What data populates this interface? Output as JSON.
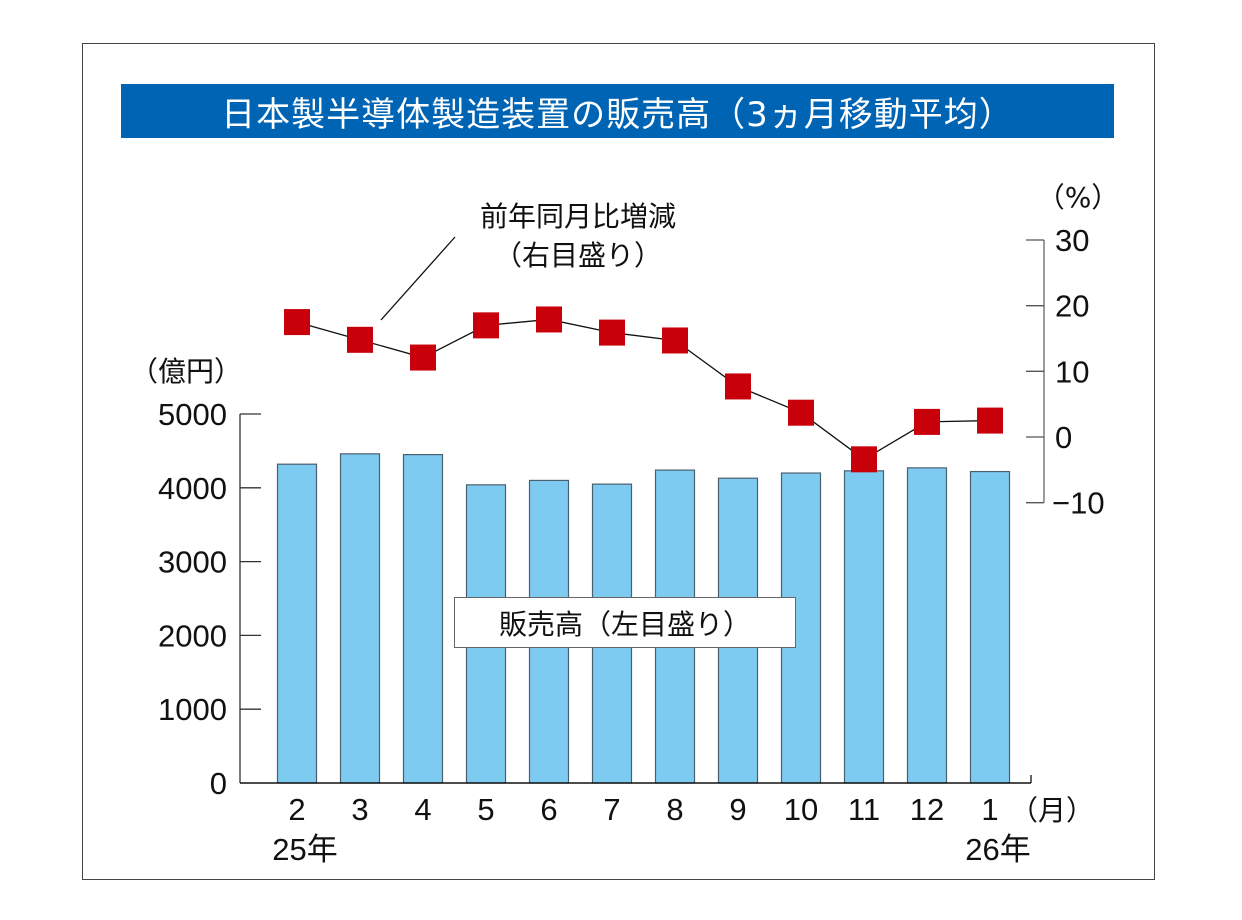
{
  "chart_data": {
    "type": "bar+line",
    "title": "日本製半導体製造装置の販売高（3ヵ月移動平均）",
    "categories": [
      "2",
      "3",
      "4",
      "5",
      "6",
      "7",
      "8",
      "9",
      "10",
      "11",
      "12",
      "1"
    ],
    "year_labels": [
      {
        "index": 0,
        "label": "25年"
      },
      {
        "index": 11,
        "label": "26年"
      }
    ],
    "x_unit": "（月）",
    "series": [
      {
        "name": "販売高（左目盛り）",
        "type": "bar",
        "axis": "left",
        "color": "#7ecbf2",
        "values": [
          4320,
          4460,
          4450,
          4040,
          4100,
          4050,
          4240,
          4130,
          4200,
          4230,
          4270,
          4220
        ]
      },
      {
        "name": "前年同月比増減（右目盛り）",
        "type": "line",
        "axis": "right",
        "color": "#c8000a",
        "values": [
          17.5,
          14.8,
          12.1,
          17.0,
          17.9,
          15.9,
          14.7,
          7.7,
          3.7,
          -3.4,
          2.3,
          2.5
        ]
      }
    ],
    "left_axis": {
      "unit": "（億円）",
      "ylim": [
        0,
        5000
      ],
      "ticks": [
        0,
        1000,
        2000,
        3000,
        4000,
        5000
      ],
      "tick_labels": [
        "0",
        "1000",
        "2000",
        "3000",
        "4000",
        "5000"
      ]
    },
    "right_axis": {
      "unit": "（%）",
      "ylim": [
        -10,
        30
      ],
      "ticks": [
        -10,
        0,
        10,
        20,
        30
      ],
      "tick_labels": [
        "−10",
        "0",
        "10",
        "20",
        "30"
      ]
    },
    "annotations": {
      "line_label_1": "前年同月比増減",
      "line_label_2": "（右目盛り）",
      "bar_label": "販売高（左目盛り）"
    },
    "grid": false,
    "colors": {
      "title_bg": "#0064b4",
      "bar": "#7ecbf2",
      "marker": "#c8000a"
    }
  }
}
